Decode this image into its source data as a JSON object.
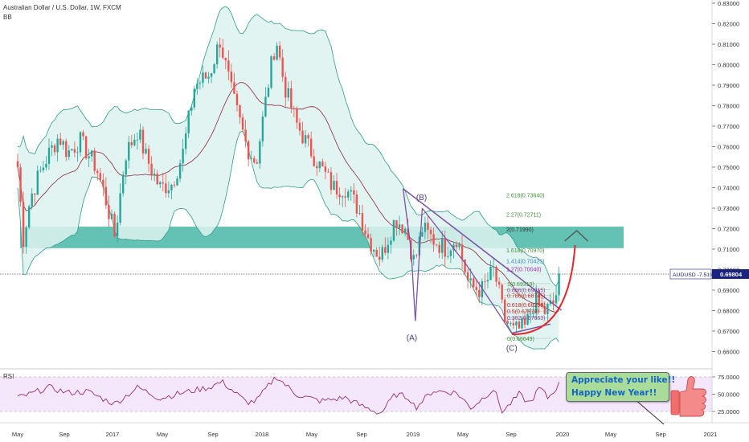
{
  "header": {
    "title": "Australian Dollar / U.S. Dollar, 1W, FXCM",
    "indicator": "BB"
  },
  "price_axis": {
    "ticks": [
      "0.83000",
      "0.82000",
      "0.81000",
      "0.80000",
      "0.79000",
      "0.78000",
      "0.77000",
      "0.76000",
      "0.75000",
      "0.74000",
      "0.73000",
      "0.72000",
      "0.71000",
      "0.70000",
      "0.69000",
      "0.68000",
      "0.67000",
      "0.66000"
    ],
    "current_tag": {
      "symbol": "AUDUSD",
      "change": "-7.51%",
      "price": "0.69804"
    }
  },
  "rsi_axis": {
    "label": "RSI",
    "ticks": [
      "75.0000",
      "50.0000",
      "25.0000"
    ]
  },
  "time_axis": {
    "ticks": [
      "May",
      "Sep",
      "2017",
      "May",
      "Sep",
      "2018",
      "May",
      "Sep",
      "2019",
      "May",
      "Sep",
      "2020",
      "May",
      "Sep",
      "2021"
    ]
  },
  "annotations": {
    "wave_labels": [
      "(A)",
      "(B)",
      "(C)"
    ],
    "fib_labels": [
      "2.618(0.73640)",
      "2.27(0.72711)",
      "2(0.71990)",
      "1.618(0.70970)",
      "1.414(0.70425)",
      "1.27(0.70040)",
      "1(0.69319)",
      "0.886(0.69015)",
      "0.786(0.68745)",
      "0.618(0.68298)",
      "0.5(0.67978)",
      "0.382(0.67663)",
      "0(0.66649)"
    ],
    "note_lines": [
      "Appreciate your like!!",
      "Happy New Year!!"
    ]
  },
  "colors": {
    "up": "#26a69a",
    "down": "#ef5350",
    "band_fill": "#ddf2ee",
    "band_line": "#2e9c87",
    "basis": "#8b2a3c",
    "zone": "#5cbfb0",
    "wave": "#7a52a8",
    "fib": "#3f8f3a",
    "arc": "#e5262b",
    "rsi_line": "#9a2c6e",
    "rsi_fill": "#f1e1fb",
    "price_tag": "#1a237e"
  },
  "chart_data": {
    "type": "candlestick",
    "title": "Australian Dollar / U.S. Dollar, 1W, FXCM",
    "symbol": "AUDUSD",
    "interval": "1W",
    "last_price": 0.69804,
    "y_range": [
      0.654,
      0.834
    ],
    "rsi_range": [
      10,
      90
    ],
    "resistance_zone": [
      0.7105,
      0.721
    ],
    "close_path": [
      [
        "2016-05-01",
        0.75
      ],
      [
        "2016-05-15",
        0.715
      ],
      [
        "2016-06-01",
        0.735
      ],
      [
        "2016-06-20",
        0.745
      ],
      [
        "2016-07-15",
        0.756
      ],
      [
        "2016-08-10",
        0.765
      ],
      [
        "2016-09-01",
        0.757
      ],
      [
        "2016-10-01",
        0.763
      ],
      [
        "2016-11-10",
        0.75
      ],
      [
        "2016-12-01",
        0.736
      ],
      [
        "2016-12-26",
        0.716
      ],
      [
        "2017-01-20",
        0.756
      ],
      [
        "2017-02-20",
        0.768
      ],
      [
        "2017-03-10",
        0.756
      ],
      [
        "2017-04-15",
        0.74
      ],
      [
        "2017-05-15",
        0.742
      ],
      [
        "2017-06-10",
        0.756
      ],
      [
        "2017-07-10",
        0.79
      ],
      [
        "2017-08-15",
        0.795
      ],
      [
        "2017-09-10",
        0.812
      ],
      [
        "2017-10-10",
        0.785
      ],
      [
        "2017-11-15",
        0.76
      ],
      [
        "2017-12-08",
        0.752
      ],
      [
        "2018-01-10",
        0.795
      ],
      [
        "2018-01-26",
        0.813
      ],
      [
        "2018-02-15",
        0.79
      ],
      [
        "2018-03-15",
        0.772
      ],
      [
        "2018-04-15",
        0.76
      ],
      [
        "2018-05-15",
        0.75
      ],
      [
        "2018-06-15",
        0.74
      ],
      [
        "2018-07-15",
        0.74
      ],
      [
        "2018-08-15",
        0.73
      ],
      [
        "2018-09-10",
        0.715
      ],
      [
        "2018-10-10",
        0.706
      ],
      [
        "2018-11-15",
        0.725
      ],
      [
        "2018-12-10",
        0.72
      ],
      [
        "2019-01-01",
        0.703
      ],
      [
        "2019-01-20",
        0.72
      ],
      [
        "2019-02-20",
        0.714
      ],
      [
        "2019-03-20",
        0.71
      ],
      [
        "2019-04-15",
        0.716
      ],
      [
        "2019-05-15",
        0.692
      ],
      [
        "2019-06-15",
        0.69
      ],
      [
        "2019-07-15",
        0.7
      ],
      [
        "2019-08-10",
        0.676
      ],
      [
        "2019-09-01",
        0.67
      ],
      [
        "2019-10-01",
        0.672
      ],
      [
        "2019-10-25",
        0.686
      ],
      [
        "2019-11-15",
        0.679
      ],
      [
        "2019-12-10",
        0.684
      ],
      [
        "2019-12-27",
        0.698
      ]
    ],
    "rsi_path": [
      [
        "2016-05-01",
        45
      ],
      [
        "2016-06-01",
        50
      ],
      [
        "2016-07-15",
        60
      ],
      [
        "2016-09-01",
        52
      ],
      [
        "2016-10-20",
        54
      ],
      [
        "2016-12-01",
        42
      ],
      [
        "2016-12-26",
        36
      ],
      [
        "2017-02-20",
        60
      ],
      [
        "2017-04-15",
        44
      ],
      [
        "2017-06-10",
        52
      ],
      [
        "2017-08-15",
        60
      ],
      [
        "2017-09-15",
        68
      ],
      [
        "2017-11-15",
        38
      ],
      [
        "2017-12-08",
        40
      ],
      [
        "2018-01-26",
        76
      ],
      [
        "2018-03-15",
        50
      ],
      [
        "2018-05-15",
        40
      ],
      [
        "2018-07-15",
        45
      ],
      [
        "2018-08-20",
        34
      ],
      [
        "2018-10-10",
        22
      ],
      [
        "2018-11-15",
        50
      ],
      [
        "2018-12-20",
        45
      ],
      [
        "2019-01-03",
        30
      ],
      [
        "2019-02-15",
        55
      ],
      [
        "2019-04-15",
        52
      ],
      [
        "2019-05-20",
        30
      ],
      [
        "2019-07-15",
        58
      ],
      [
        "2019-08-05",
        24
      ],
      [
        "2019-09-15",
        50
      ],
      [
        "2019-10-10",
        36
      ],
      [
        "2019-11-05",
        60
      ],
      [
        "2019-11-25",
        44
      ],
      [
        "2019-12-27",
        68
      ]
    ],
    "waves": [
      {
        "label": "(A)",
        "points": [
          [
            "2018-12-04",
            0.7395
          ],
          [
            "2018-12-24",
            0.709
          ],
          [
            "2019-01-03",
            0.675
          ]
        ]
      },
      {
        "label": "(B)",
        "points": [
          [
            "2019-01-03",
            0.675
          ],
          [
            "2019-01-20",
            0.73
          ]
        ]
      },
      {
        "label": "(C)",
        "points": [
          [
            "2019-01-20",
            0.73
          ],
          [
            "2019-05-10",
            0.702
          ],
          [
            "2019-08-28",
            0.669
          ]
        ]
      }
    ],
    "trendlines": [
      {
        "from": [
          "2018-12-04",
          0.7395
        ],
        "to": [
          "2019-12-28",
          0.6802
        ]
      },
      {
        "from": [
          "2019-08-28",
          0.669
        ],
        "to": [
          "2019-12-01",
          0.6735
        ]
      }
    ],
    "projection_arc": {
      "from": [
        "2019-08-28",
        0.6685
      ],
      "to": [
        "2019-12-28",
        0.712
      ]
    },
    "fib_levels": [
      {
        "ratio": 2.618,
        "price": 0.7364
      },
      {
        "ratio": 2.27,
        "price": 0.72711
      },
      {
        "ratio": 2,
        "price": 0.7199
      },
      {
        "ratio": 1.618,
        "price": 0.7097
      },
      {
        "ratio": 1.414,
        "price": 0.70425
      },
      {
        "ratio": 1.27,
        "price": 0.7004
      },
      {
        "ratio": 1,
        "price": 0.69319
      },
      {
        "ratio": 0.886,
        "price": 0.69015
      },
      {
        "ratio": 0.786,
        "price": 0.68745
      },
      {
        "ratio": 0.618,
        "price": 0.68298
      },
      {
        "ratio": 0.5,
        "price": 0.67978
      },
      {
        "ratio": 0.382,
        "price": 0.67663
      },
      {
        "ratio": 0,
        "price": 0.66649
      }
    ],
    "indicators": [
      "BB",
      "RSI"
    ],
    "rsi_levels": [
      75,
      50,
      25
    ]
  }
}
